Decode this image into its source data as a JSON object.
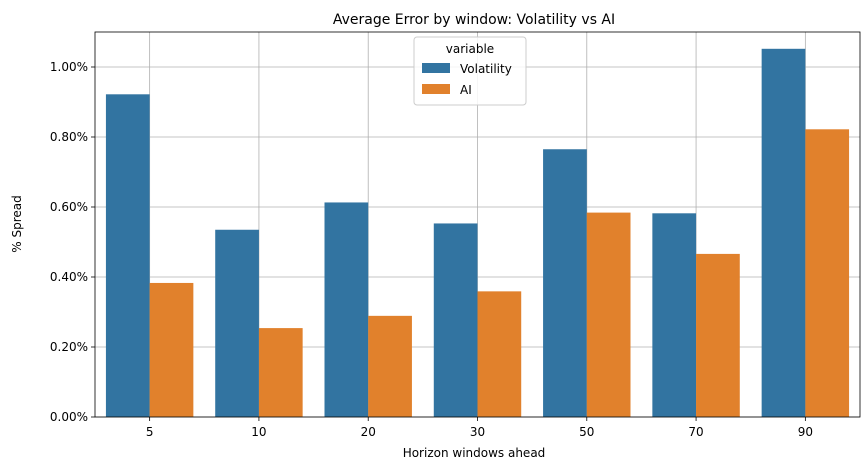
{
  "chart_data": {
    "type": "bar",
    "title": "Average Error by window: Volatility vs AI",
    "xlabel": "Horizon windows ahead",
    "ylabel": "% Spread",
    "categories": [
      "5",
      "10",
      "20",
      "30",
      "50",
      "70",
      "90"
    ],
    "series": [
      {
        "name": "Volatility",
        "color": "#3274a1",
        "values": [
          0.922,
          0.535,
          0.613,
          0.553,
          0.765,
          0.582,
          1.052
        ]
      },
      {
        "name": "AI",
        "color": "#e1812c",
        "values": [
          0.383,
          0.254,
          0.289,
          0.359,
          0.584,
          0.466,
          0.822
        ]
      }
    ],
    "ylim": [
      0,
      1.1
    ],
    "yticks": [
      0,
      0.2,
      0.4,
      0.6,
      0.8,
      1.0
    ],
    "ytick_labels": [
      "0.00%",
      "0.20%",
      "0.40%",
      "0.60%",
      "0.80%",
      "1.00%"
    ],
    "grid": true,
    "legend": {
      "title": "variable",
      "placement": "top-center"
    }
  }
}
